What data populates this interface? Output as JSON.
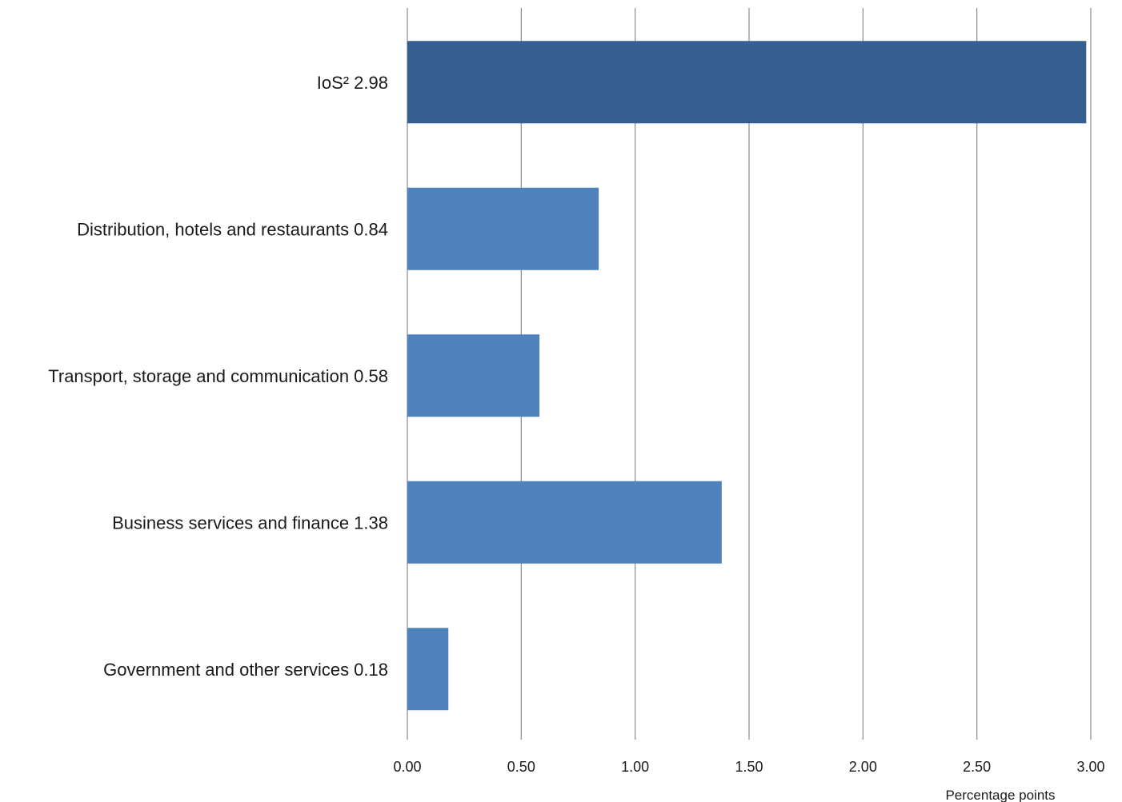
{
  "chart_data": {
    "type": "bar",
    "orientation": "horizontal",
    "categories": [
      "IoS² 2.98",
      "Distribution, hotels and restaurants 0.84",
      "Transport, storage and communication 0.58",
      "Business services and finance 1.38",
      "Government and other services 0.18"
    ],
    "values": [
      2.98,
      0.84,
      0.58,
      1.38,
      0.18
    ],
    "colors": [
      "#365f91",
      "#4f81bd",
      "#4f81bd",
      "#4f81bd",
      "#4f81bd"
    ],
    "xlabel": "Percentage points",
    "xlim": [
      0,
      3.0
    ],
    "ticks": [
      "0.00",
      "0.50",
      "1.00",
      "1.50",
      "2.00",
      "2.50",
      "3.00"
    ],
    "tick_values": [
      0,
      0.5,
      1.0,
      1.5,
      2.0,
      2.5,
      3.0
    ],
    "grid": "vertical",
    "gridline_color": "#8a8a8a",
    "legend": "none"
  }
}
